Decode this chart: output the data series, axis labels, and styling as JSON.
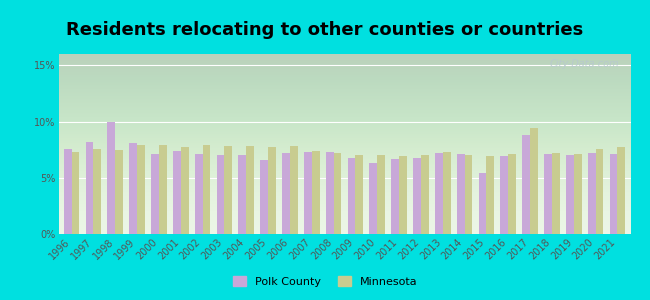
{
  "title": "Residents relocating to other counties or countries",
  "years": [
    1996,
    1997,
    1998,
    1999,
    2000,
    2001,
    2002,
    2003,
    2004,
    2005,
    2006,
    2007,
    2008,
    2009,
    2010,
    2011,
    2012,
    2013,
    2014,
    2015,
    2016,
    2017,
    2018,
    2019,
    2020,
    2021
  ],
  "polk_county": [
    7.6,
    8.2,
    10.0,
    8.1,
    7.1,
    7.4,
    7.1,
    7.0,
    7.0,
    6.6,
    7.2,
    7.3,
    7.3,
    6.8,
    6.3,
    6.7,
    6.8,
    7.2,
    7.1,
    5.4,
    6.9,
    8.8,
    7.1,
    7.0,
    7.2,
    7.1
  ],
  "minnesota": [
    7.3,
    7.6,
    7.5,
    7.9,
    7.9,
    7.7,
    7.9,
    7.8,
    7.8,
    7.7,
    7.8,
    7.4,
    7.2,
    7.0,
    7.0,
    6.9,
    7.0,
    7.3,
    7.0,
    6.9,
    7.1,
    9.4,
    7.2,
    7.1,
    7.6,
    7.7
  ],
  "polk_color": "#c8a8d8",
  "mn_color": "#c8cc90",
  "figure_bg": "#00e0e0",
  "plot_bg": "#eaf5e4",
  "yticks": [
    0,
    5,
    10,
    15
  ],
  "ylabel_ticks": [
    "0%",
    "5%",
    "10%",
    "15%"
  ],
  "ylim": [
    0,
    16
  ],
  "title_fontsize": 13,
  "tick_fontsize": 7,
  "legend_labels": [
    "Polk County",
    "Minnesota"
  ],
  "watermark": "City-Data.com",
  "bar_width": 0.36
}
